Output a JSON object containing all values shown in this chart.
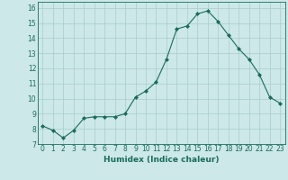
{
  "x": [
    0,
    1,
    2,
    3,
    4,
    5,
    6,
    7,
    8,
    9,
    10,
    11,
    12,
    13,
    14,
    15,
    16,
    17,
    18,
    19,
    20,
    21,
    22,
    23
  ],
  "y": [
    8.2,
    7.9,
    7.4,
    7.9,
    8.7,
    8.8,
    8.8,
    8.8,
    9.0,
    10.1,
    10.5,
    11.1,
    12.6,
    14.6,
    14.8,
    15.6,
    15.8,
    15.1,
    14.2,
    13.3,
    12.6,
    11.6,
    10.1,
    9.7
  ],
  "line_color": "#1a6b5a",
  "marker": "D",
  "marker_size": 2.0,
  "bg_color": "#cce8e8",
  "grid_color": "#aacccc",
  "xlabel": "Humidex (Indice chaleur)",
  "xlabel_color": "#1a6b5a",
  "tick_color": "#1a6b5a",
  "ylim": [
    7,
    16.4
  ],
  "xlim": [
    -0.5,
    23.5
  ],
  "yticks": [
    7,
    8,
    9,
    10,
    11,
    12,
    13,
    14,
    15,
    16
  ],
  "xticks": [
    0,
    1,
    2,
    3,
    4,
    5,
    6,
    7,
    8,
    9,
    10,
    11,
    12,
    13,
    14,
    15,
    16,
    17,
    18,
    19,
    20,
    21,
    22,
    23
  ],
  "label_fontsize": 6.5,
  "tick_fontsize": 5.5
}
